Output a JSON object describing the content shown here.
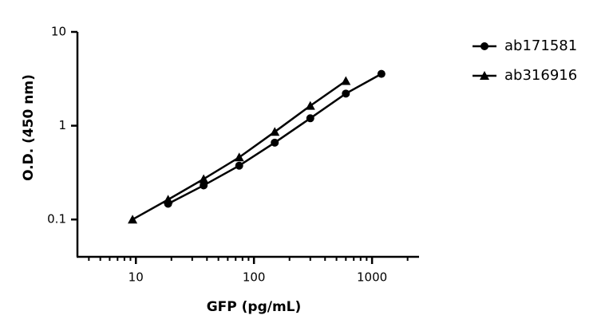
{
  "chart_data": {
    "type": "line",
    "xlabel": "GFP (pg/mL)",
    "ylabel": "O.D. (450 nm)",
    "xlog": true,
    "ylog": true,
    "xlim": [
      3.2,
      2500
    ],
    "ylim": [
      0.04,
      10
    ],
    "xticks": [
      10,
      100,
      1000
    ],
    "xminorticks": [
      4,
      5,
      6,
      7,
      8,
      9,
      20,
      30,
      40,
      50,
      60,
      70,
      80,
      90,
      200,
      300,
      400,
      500,
      600,
      700,
      800,
      900,
      2000
    ],
    "yticks": [
      0.1,
      1,
      10
    ],
    "legend": "right",
    "series": [
      {
        "name": "ab171581",
        "color": "#000000",
        "marker": "circle",
        "x": [
          18.75,
          37.5,
          75,
          150,
          300,
          600,
          1200
        ],
        "values": [
          0.147,
          0.231,
          0.375,
          0.66,
          1.2,
          2.2,
          3.57
        ]
      },
      {
        "name": "ab316916",
        "color": "#000000",
        "marker": "triangle",
        "x": [
          9.375,
          18.75,
          37.5,
          75,
          150,
          300,
          600
        ],
        "values": [
          0.1,
          0.163,
          0.27,
          0.46,
          0.86,
          1.63,
          3.0
        ]
      }
    ]
  }
}
